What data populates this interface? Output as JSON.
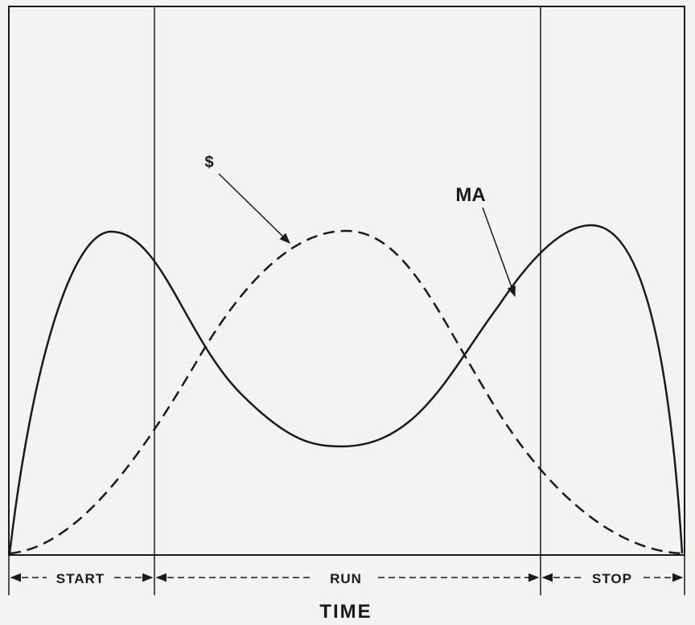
{
  "curve_labels": {
    "dollar": "$",
    "ma": "MA"
  },
  "phases": [
    "START",
    "RUN",
    "STOP"
  ],
  "axis_label": "TIME"
}
